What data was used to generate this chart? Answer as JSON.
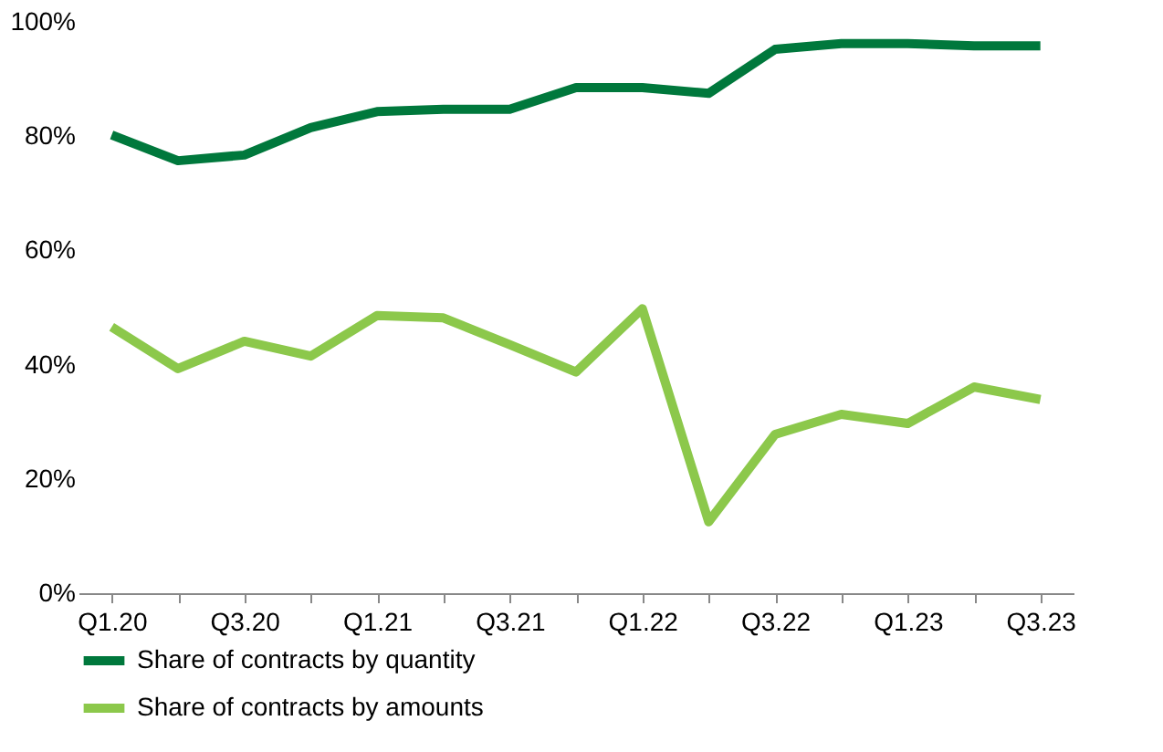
{
  "chart_data": {
    "type": "line",
    "categories": [
      "Q1.20",
      null,
      "Q3.20",
      null,
      "Q1.21",
      null,
      "Q3.21",
      null,
      "Q1.22",
      null,
      "Q3.22",
      null,
      "Q1.23",
      null,
      "Q3.23"
    ],
    "series": [
      {
        "name": "Share of contracts by quantity",
        "color": "#00783c",
        "values": [
          80.2,
          75.7,
          76.7,
          81.5,
          84.3,
          84.7,
          84.7,
          88.5,
          88.5,
          87.5,
          95.2,
          96.2,
          96.2,
          95.8,
          95.8
        ]
      },
      {
        "name": "Share of contracts by amounts",
        "color": "#8cc84b",
        "values": [
          46.6,
          39.3,
          44.1,
          41.5,
          48.6,
          48.2,
          43.5,
          38.7,
          49.8,
          12.5,
          27.8,
          31.3,
          29.7,
          36.1,
          33.9
        ]
      }
    ],
    "ylim": [
      0,
      100
    ],
    "yticks": [
      {
        "value": 0,
        "label": "0%"
      },
      {
        "value": 20,
        "label": "20%"
      },
      {
        "value": 40,
        "label": "40%"
      },
      {
        "value": 60,
        "label": "60%"
      },
      {
        "value": 80,
        "label": "80%"
      },
      {
        "value": 100,
        "label": "100%"
      }
    ],
    "grid": false,
    "legend": "bottom",
    "marker": "none",
    "line_style": "solid"
  }
}
